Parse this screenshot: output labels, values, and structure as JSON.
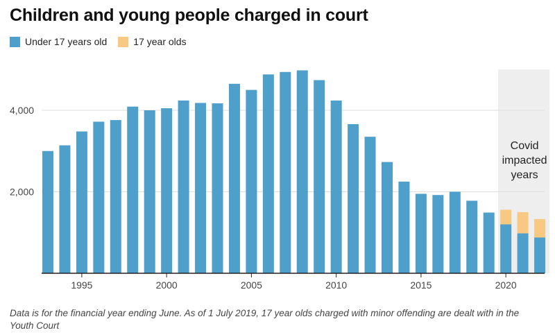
{
  "chart_data": {
    "type": "bar",
    "stacked": true,
    "title": "Children and young people charged in court",
    "x": [
      1993,
      1994,
      1995,
      1996,
      1997,
      1998,
      1999,
      2000,
      2001,
      2002,
      2003,
      2004,
      2005,
      2006,
      2007,
      2008,
      2009,
      2010,
      2011,
      2012,
      2013,
      2014,
      2015,
      2016,
      2017,
      2018,
      2019,
      2020,
      2021,
      2022
    ],
    "series": [
      {
        "name": "Under 17 years old",
        "color": "#4e9fca",
        "values": [
          3000,
          3140,
          3480,
          3720,
          3760,
          4090,
          4000,
          4050,
          4240,
          4180,
          4170,
          4650,
          4500,
          4880,
          4940,
          4980,
          4740,
          4240,
          3660,
          3350,
          2730,
          2250,
          1950,
          1920,
          2000,
          1780,
          1490,
          1200,
          980,
          880
        ]
      },
      {
        "name": "17 year olds",
        "color": "#f8c982",
        "values": [
          0,
          0,
          0,
          0,
          0,
          0,
          0,
          0,
          0,
          0,
          0,
          0,
          0,
          0,
          0,
          0,
          0,
          0,
          0,
          0,
          0,
          0,
          0,
          0,
          0,
          0,
          0,
          360,
          520,
          450
        ]
      }
    ],
    "ylim": [
      0,
      5000
    ],
    "yticks": [
      2000,
      4000
    ],
    "ytick_labels": [
      "2,000",
      "4,000"
    ],
    "xticks": [
      1995,
      2000,
      2005,
      2010,
      2015,
      2020
    ],
    "xtick_labels": [
      "1995",
      "2000",
      "2005",
      "2010",
      "2015",
      "2020"
    ],
    "shaded_region": {
      "start": 2020,
      "end": 2022,
      "label_lines": [
        "Covid",
        "impacted",
        "years"
      ]
    },
    "grid": "horizontal",
    "legend_position": "top-left"
  },
  "note": "Data is for the financial year ending June. As of 1 July 2019, 17 year olds charged with minor offending are dealt with in the Youth Court"
}
